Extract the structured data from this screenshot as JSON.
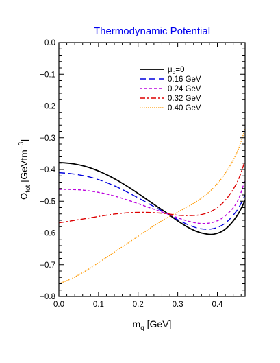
{
  "chart_data": {
    "type": "line",
    "title": "Thermodynamic Potential",
    "xlabel": {
      "main": "m",
      "sub": "q",
      "unit": " [GeV]"
    },
    "ylabel": {
      "main": "Ω",
      "sub": "tot",
      "unit_pre": " [GeVfm",
      "unit_sup": "−3",
      "unit_post": "]"
    },
    "xlim": [
      0.0,
      0.47
    ],
    "ylim": [
      -0.8,
      0.0
    ],
    "x_ticks": [
      "0.0",
      "0.1",
      "0.2",
      "0.3",
      "0.4"
    ],
    "x_tick_values": [
      0.0,
      0.1,
      0.2,
      0.3,
      0.4
    ],
    "y_ticks": [
      "0.0",
      "−0.1",
      "−0.2",
      "−0.3",
      "−0.4",
      "−0.5",
      "−0.6",
      "−0.7",
      "−0.8"
    ],
    "y_tick_values": [
      0.0,
      -0.1,
      -0.2,
      -0.3,
      -0.4,
      -0.5,
      -0.6,
      -0.7,
      -0.8
    ],
    "legend_position": "top-right",
    "series": [
      {
        "name": "μ=0",
        "legend": {
          "main": "μ",
          "sub": "q",
          "rest": "=0"
        },
        "color": "#000000",
        "dash": "solid",
        "x": [
          0.0,
          0.03,
          0.06,
          0.09,
          0.12,
          0.15,
          0.18,
          0.21,
          0.24,
          0.27,
          0.3,
          0.33,
          0.36,
          0.39,
          0.42,
          0.45,
          0.47
        ],
        "y": [
          -0.378,
          -0.381,
          -0.388,
          -0.4,
          -0.416,
          -0.436,
          -0.459,
          -0.484,
          -0.51,
          -0.535,
          -0.562,
          -0.585,
          -0.6,
          -0.604,
          -0.588,
          -0.545,
          -0.497
        ]
      },
      {
        "name": "0.16 GeV",
        "legend": {
          "main": "0.16 GeV",
          "sub": "",
          "rest": ""
        },
        "color": "#0000dd",
        "dash": "long-dash",
        "x": [
          0.0,
          0.03,
          0.06,
          0.09,
          0.12,
          0.15,
          0.18,
          0.21,
          0.24,
          0.27,
          0.3,
          0.33,
          0.36,
          0.39,
          0.42,
          0.45,
          0.47
        ],
        "y": [
          -0.41,
          -0.413,
          -0.419,
          -0.428,
          -0.441,
          -0.457,
          -0.476,
          -0.496,
          -0.517,
          -0.537,
          -0.558,
          -0.576,
          -0.587,
          -0.586,
          -0.569,
          -0.528,
          -0.48
        ]
      },
      {
        "name": "0.24 GeV",
        "legend": {
          "main": "0.24 GeV",
          "sub": "",
          "rest": ""
        },
        "color": "#bb00dd",
        "dash": "short-dash",
        "x": [
          0.0,
          0.03,
          0.06,
          0.09,
          0.12,
          0.15,
          0.18,
          0.21,
          0.24,
          0.27,
          0.3,
          0.33,
          0.36,
          0.39,
          0.42,
          0.45,
          0.47
        ],
        "y": [
          -0.463,
          -0.463,
          -0.465,
          -0.47,
          -0.477,
          -0.487,
          -0.499,
          -0.512,
          -0.525,
          -0.538,
          -0.552,
          -0.564,
          -0.57,
          -0.566,
          -0.546,
          -0.502,
          -0.432
        ]
      },
      {
        "name": "0.32 GeV",
        "legend": {
          "main": "0.32 GeV",
          "sub": "",
          "rest": ""
        },
        "color": "#dd0000",
        "dash": "dash-dot",
        "x": [
          0.0,
          0.03,
          0.06,
          0.09,
          0.12,
          0.15,
          0.18,
          0.21,
          0.24,
          0.27,
          0.3,
          0.33,
          0.36,
          0.39,
          0.42,
          0.45,
          0.47
        ],
        "y": [
          -0.568,
          -0.562,
          -0.556,
          -0.55,
          -0.544,
          -0.539,
          -0.536,
          -0.535,
          -0.536,
          -0.539,
          -0.544,
          -0.545,
          -0.542,
          -0.528,
          -0.497,
          -0.44,
          -0.372
        ]
      },
      {
        "name": "0.40 GeV",
        "legend": {
          "main": "0.40 GeV",
          "sub": "",
          "rest": ""
        },
        "color": "#ff9900",
        "dash": "dotted",
        "x": [
          0.0,
          0.03,
          0.06,
          0.09,
          0.12,
          0.15,
          0.18,
          0.21,
          0.24,
          0.27,
          0.3,
          0.33,
          0.36,
          0.39,
          0.42,
          0.45,
          0.47
        ],
        "y": [
          -0.76,
          -0.745,
          -0.725,
          -0.702,
          -0.677,
          -0.652,
          -0.627,
          -0.602,
          -0.577,
          -0.554,
          -0.534,
          -0.514,
          -0.49,
          -0.458,
          -0.412,
          -0.345,
          -0.272
        ]
      }
    ]
  }
}
